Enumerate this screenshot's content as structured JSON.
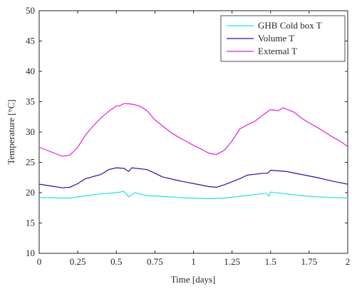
{
  "chart_data": {
    "type": "line",
    "xlabel": "Time [days]",
    "ylabel": "Temperature [°C]",
    "xlim": [
      0,
      2
    ],
    "ylim": [
      10,
      50
    ],
    "xticks": [
      0,
      0.25,
      0.5,
      0.75,
      1,
      1.25,
      1.5,
      1.75,
      2
    ],
    "yticks": [
      10,
      15,
      20,
      25,
      30,
      35,
      40,
      45,
      50
    ],
    "legend": "upper right",
    "series": [
      {
        "name": "GHB Cold box T",
        "color": "#22e0e0",
        "x": [
          0,
          0.2,
          0.3,
          0.4,
          0.5,
          0.55,
          0.58,
          0.62,
          0.7,
          0.8,
          0.9,
          1.0,
          1.1,
          1.2,
          1.3,
          1.4,
          1.47,
          1.49,
          1.5,
          1.6,
          1.7,
          1.8,
          1.9,
          2.0
        ],
        "values": [
          19.2,
          19.1,
          19.5,
          19.8,
          20,
          20.2,
          19.3,
          20,
          19.5,
          19.4,
          19.2,
          19.1,
          19.0,
          19.1,
          19.4,
          19.7,
          19.9,
          19.4,
          20.1,
          19.8,
          19.5,
          19.3,
          19.2,
          19.1
        ]
      },
      {
        "name": "Volume T",
        "color": "#1a1aa6",
        "x": [
          0,
          0.1,
          0.15,
          0.2,
          0.25,
          0.3,
          0.4,
          0.45,
          0.5,
          0.55,
          0.58,
          0.6,
          0.7,
          0.75,
          0.8,
          0.9,
          1.0,
          1.1,
          1.15,
          1.2,
          1.3,
          1.35,
          1.45,
          1.48,
          1.5,
          1.6,
          1.7,
          1.8,
          1.9,
          2.0
        ],
        "values": [
          21.4,
          21,
          20.8,
          20.9,
          21.5,
          22.3,
          23,
          23.8,
          24.1,
          24,
          23.5,
          24.1,
          23.8,
          23.2,
          22.6,
          22,
          21.5,
          21,
          20.9,
          21.3,
          22.3,
          22.9,
          23.2,
          23.2,
          23.7,
          23.5,
          23,
          22.5,
          21.9,
          21.4
        ]
      },
      {
        "name": "External T",
        "color": "#e020e0",
        "x": [
          0,
          0.15,
          0.2,
          0.25,
          0.3,
          0.35,
          0.4,
          0.45,
          0.5,
          0.52,
          0.55,
          0.6,
          0.65,
          0.7,
          0.75,
          0.8,
          0.85,
          0.9,
          0.95,
          1.0,
          1.05,
          1.1,
          1.15,
          1.2,
          1.25,
          1.3,
          1.35,
          1.4,
          1.45,
          1.5,
          1.55,
          1.58,
          1.65,
          1.7,
          1.75,
          1.8,
          1.85,
          1.9,
          1.95,
          2.0
        ],
        "values": [
          27.5,
          26,
          26.2,
          27.5,
          29.5,
          31,
          32.3,
          33.4,
          34.3,
          34.3,
          34.7,
          34.6,
          34.3,
          33.5,
          32,
          31,
          30,
          29.2,
          28.5,
          27.8,
          27.2,
          26.5,
          26.3,
          27,
          28.5,
          30.5,
          31.2,
          31.8,
          32.8,
          33.7,
          33.5,
          34,
          33.3,
          32.3,
          31.5,
          30.8,
          30,
          29.2,
          28.5,
          27.6
        ]
      }
    ]
  }
}
